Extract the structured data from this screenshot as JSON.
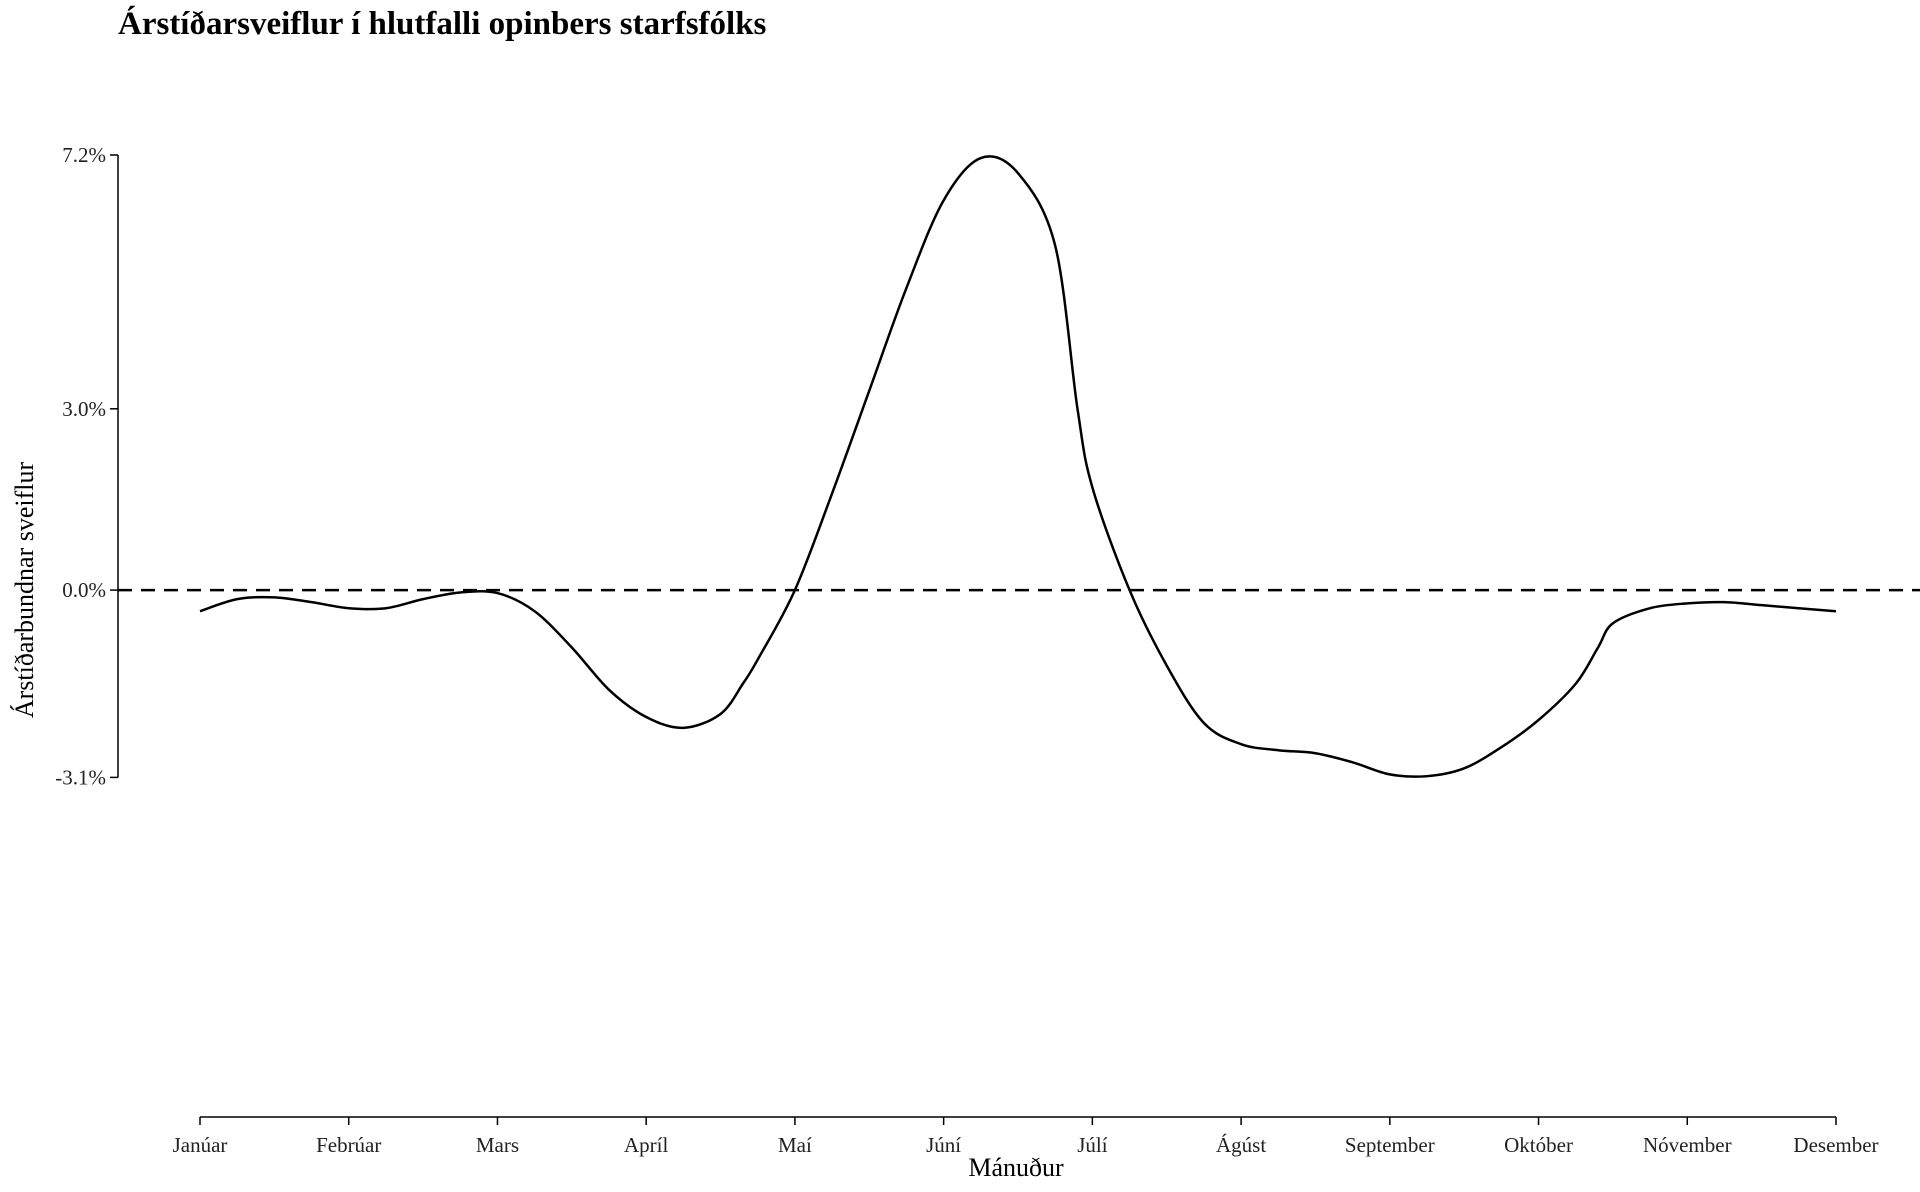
{
  "chart_data": {
    "type": "line",
    "title": "Árstíðarsveiflur í hlutfalli opinbers starfsfólks",
    "xlabel": "Mánuður",
    "ylabel": "Árstíðarbundnar sveiflur",
    "categories": [
      "Janúar",
      "Febrúar",
      "Mars",
      "Apríl",
      "Maí",
      "Júní",
      "Júlí",
      "Ágúst",
      "September",
      "Október",
      "Nóvember",
      "Desember"
    ],
    "y_ticks": [
      -3.1,
      0.0,
      3.0,
      7.2
    ],
    "y_tick_labels": [
      "-3.1%",
      "0.0%",
      "3.0%",
      "7.2%"
    ],
    "ylim": [
      -8.72,
      7.2
    ],
    "xlim": [
      1,
      12
    ],
    "reference_line": {
      "y": 0,
      "style": "dashed"
    },
    "series": [
      {
        "x": [
          1.0,
          1.25,
          1.5,
          1.75,
          2.0,
          2.25,
          2.5,
          2.75,
          3.0,
          3.25,
          3.5,
          3.75,
          4.0,
          4.25,
          4.5,
          4.65,
          4.75,
          5.0,
          5.25,
          5.5,
          5.75,
          6.0,
          6.25,
          6.5,
          6.75,
          6.9,
          7.0,
          7.25,
          7.5,
          7.75,
          8.0,
          8.25,
          8.5,
          8.75,
          9.0,
          9.25,
          9.5,
          9.75,
          10.0,
          10.25,
          10.4,
          10.5,
          10.75,
          11.0,
          11.25,
          11.5,
          11.75,
          12.0
        ],
        "values": [
          -0.35,
          -0.15,
          -0.12,
          -0.2,
          -0.3,
          -0.3,
          -0.15,
          -0.04,
          -0.05,
          -0.35,
          -0.95,
          -1.65,
          -2.1,
          -2.28,
          -2.05,
          -1.55,
          -1.15,
          0.0,
          1.6,
          3.3,
          5.0,
          6.45,
          7.15,
          6.9,
          5.7,
          3.0,
          1.7,
          0.0,
          -1.25,
          -2.2,
          -2.55,
          -2.65,
          -2.7,
          -2.85,
          -3.05,
          -3.08,
          -2.95,
          -2.6,
          -2.15,
          -1.55,
          -0.95,
          -0.55,
          -0.3,
          -0.22,
          -0.2,
          -0.25,
          -0.3,
          -0.35
        ]
      }
    ],
    "line_color": "#000000",
    "grid": false,
    "legend": "none"
  }
}
